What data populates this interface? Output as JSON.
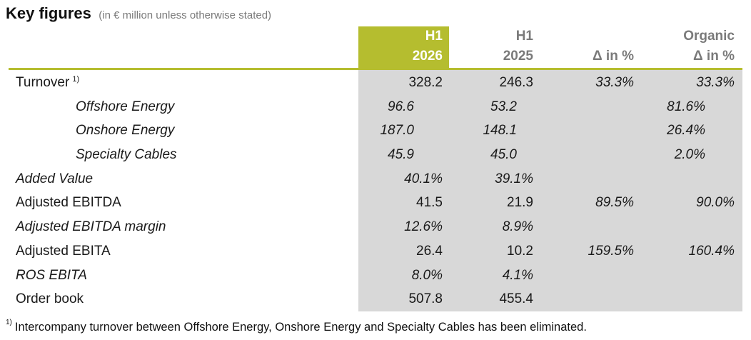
{
  "title": "Key figures",
  "subtitle": "(in € million unless otherwise stated)",
  "columns": [
    {
      "line1": "H1",
      "line2": "2026"
    },
    {
      "line1": "H1",
      "line2": "2025"
    },
    {
      "line1": "",
      "line2": "Δ in %"
    },
    {
      "line1": "Organic",
      "line2": "Δ in %"
    }
  ],
  "colors": {
    "accent": "#b5bd2f",
    "shade": "#d8d8d8",
    "header_text": "#7a7a7a"
  },
  "rows": [
    {
      "label": "Turnover",
      "footnote_mark": "1)",
      "italic": false,
      "indent": false,
      "values": [
        "328.2",
        "246.3",
        "33.3%",
        "33.3%"
      ]
    },
    {
      "label": "Offshore Energy",
      "footnote_mark": "",
      "italic": true,
      "indent": true,
      "values": [
        "96.6",
        "53.2",
        "",
        "81.6%"
      ]
    },
    {
      "label": "Onshore Energy",
      "footnote_mark": "",
      "italic": true,
      "indent": true,
      "values": [
        "187.0",
        "148.1",
        "",
        "26.4%"
      ]
    },
    {
      "label": "Specialty Cables",
      "footnote_mark": "",
      "italic": true,
      "indent": true,
      "values": [
        "45.9",
        "45.0",
        "",
        "2.0%"
      ]
    },
    {
      "label": "Added Value",
      "footnote_mark": "",
      "italic": true,
      "indent": false,
      "values": [
        "40.1%",
        "39.1%",
        "",
        ""
      ]
    },
    {
      "label": "Adjusted EBITDA",
      "footnote_mark": "",
      "italic": false,
      "indent": false,
      "values": [
        "41.5",
        "21.9",
        "89.5%",
        "90.0%"
      ]
    },
    {
      "label": "Adjusted EBITDA margin",
      "footnote_mark": "",
      "italic": true,
      "indent": false,
      "values": [
        "12.6%",
        "8.9%",
        "",
        ""
      ]
    },
    {
      "label": "Adjusted EBITA",
      "footnote_mark": "",
      "italic": false,
      "indent": false,
      "values": [
        "26.4",
        "10.2",
        "159.5%",
        "160.4%"
      ]
    },
    {
      "label": "ROS EBITA",
      "footnote_mark": "",
      "italic": true,
      "indent": false,
      "values": [
        "8.0%",
        "4.1%",
        "",
        ""
      ]
    },
    {
      "label": "Order book",
      "footnote_mark": "",
      "italic": false,
      "indent": false,
      "values": [
        "507.8",
        "455.4",
        "",
        ""
      ]
    }
  ],
  "footnote": {
    "mark": "1)",
    "text": "Intercompany turnover between Offshore Energy, Onshore Energy and Specialty Cables has been eliminated."
  }
}
